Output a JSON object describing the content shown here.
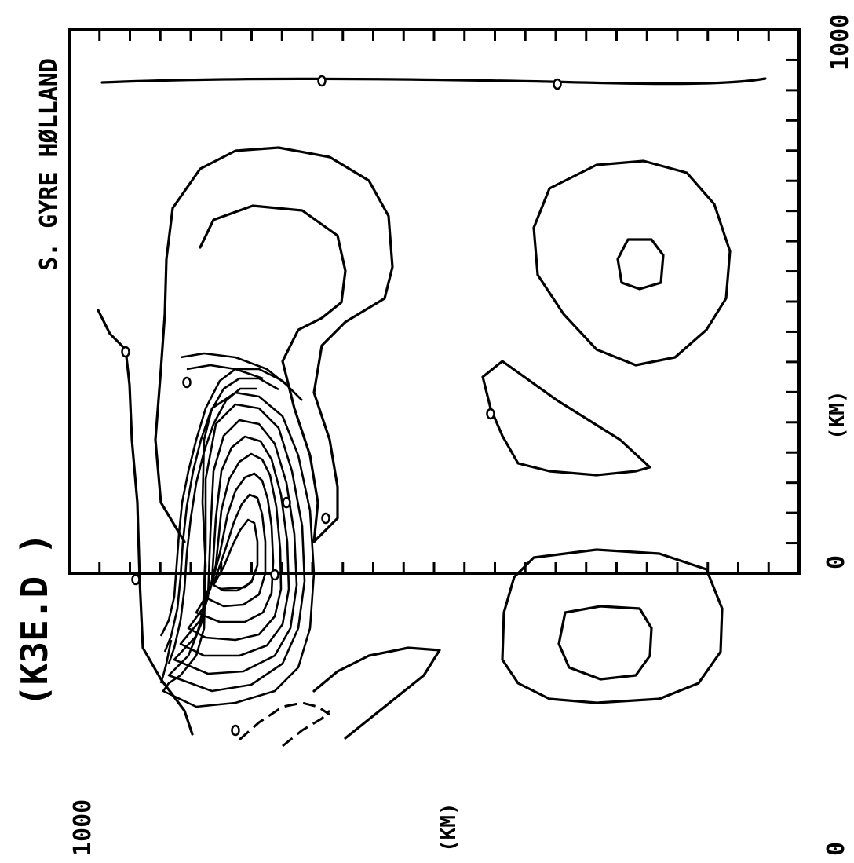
{
  "figure": {
    "run_id": "(K3E.D  )",
    "title": "S. GYRE  HØLLAND",
    "x_axis": {
      "label": "(KM)",
      "min_label": "0",
      "max_label": "1000"
    },
    "y_axis": {
      "label": "(KM)",
      "min_label": "0",
      "max_label": "1000"
    },
    "contour_labels": [
      "0",
      "0",
      "0",
      "0",
      "0",
      "0",
      "0",
      "0",
      "0",
      "0"
    ]
  }
}
